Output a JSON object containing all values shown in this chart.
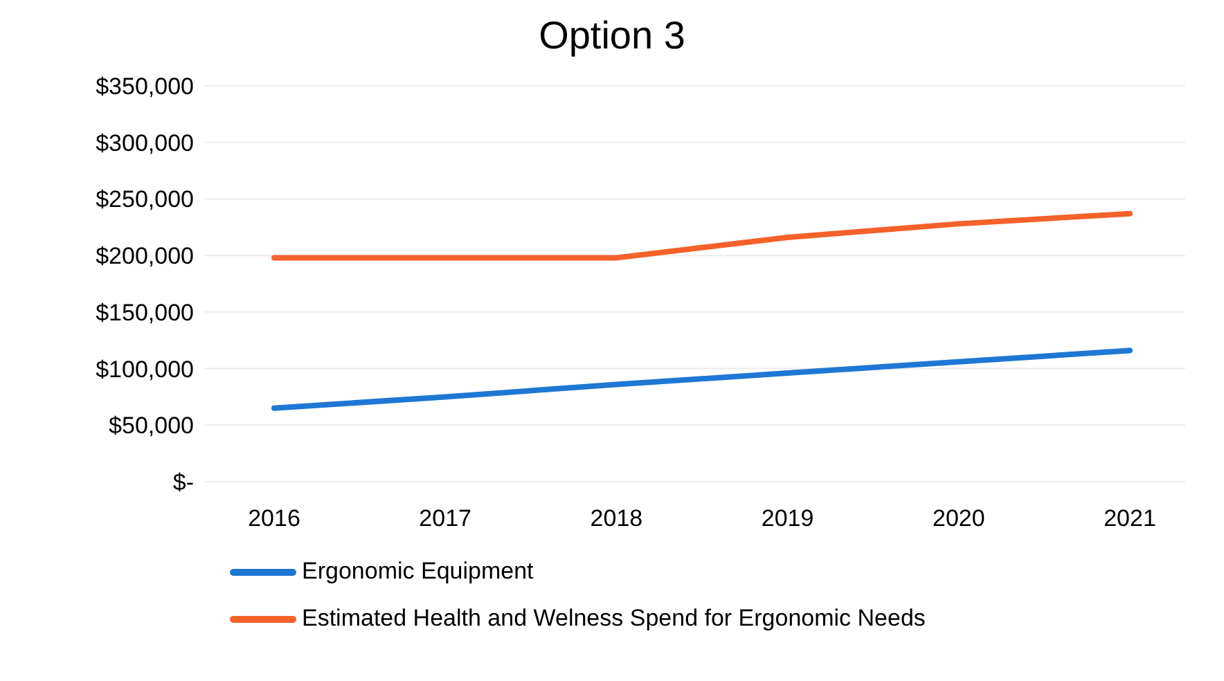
{
  "chart_data": {
    "type": "line",
    "title": "Option 3",
    "categories": [
      "2016",
      "2017",
      "2018",
      "2019",
      "2020",
      "2021"
    ],
    "series": [
      {
        "name": "Ergonomic Equipment",
        "color": "#1f77d4",
        "values": [
          65000,
          75000,
          86000,
          96000,
          106000,
          116000
        ]
      },
      {
        "name": "Estimated Health and Welness Spend for Ergonomic Needs",
        "color": "#f5612a",
        "values": [
          198000,
          198000,
          198000,
          216000,
          228000,
          237000
        ]
      }
    ],
    "ylim": [
      0,
      350000
    ],
    "yticks": [
      {
        "value": 0,
        "label": "$-"
      },
      {
        "value": 50000,
        "label": "$50,000"
      },
      {
        "value": 100000,
        "label": "$100,000"
      },
      {
        "value": 150000,
        "label": "$150,000"
      },
      {
        "value": 200000,
        "label": "$200,000"
      },
      {
        "value": 250000,
        "label": "$250,000"
      },
      {
        "value": 300000,
        "label": "$300,000"
      },
      {
        "value": 350000,
        "label": "$350,000"
      }
    ],
    "grid": "y",
    "legend": "bottom",
    "marker": "none",
    "line_style": "solid"
  }
}
